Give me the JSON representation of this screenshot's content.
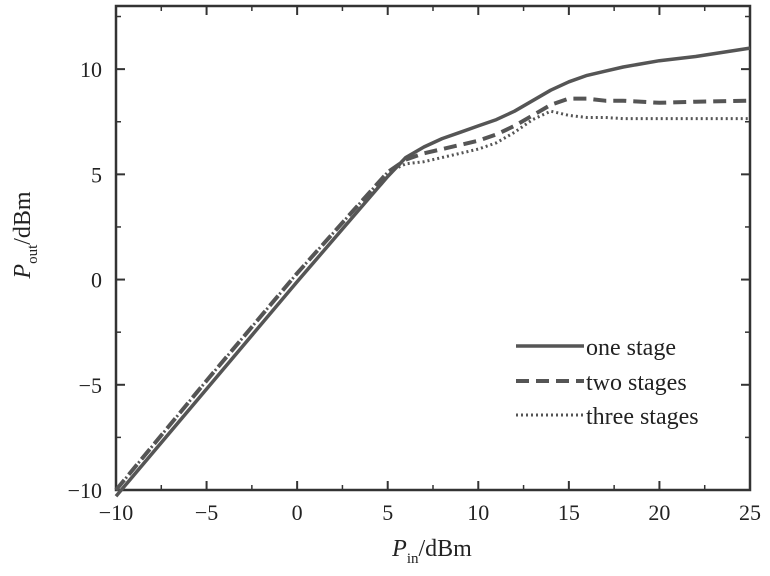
{
  "chart_data": {
    "type": "line",
    "title": "",
    "xlabel": {
      "main": "P",
      "sub": "in",
      "unit": "/dBm"
    },
    "ylabel": {
      "main": "P",
      "sub": "out",
      "unit": "/dBm"
    },
    "xlim": [
      -10,
      25
    ],
    "ylim": [
      -10,
      13
    ],
    "xticks": [
      -10,
      -5,
      0,
      5,
      10,
      15,
      20,
      25
    ],
    "xtick_labels": [
      "−10",
      "−5",
      "0",
      "5",
      "10",
      "15",
      "20",
      "25"
    ],
    "yticks": [
      -10,
      -5,
      0,
      5,
      10
    ],
    "ytick_labels": [
      "−10",
      "−5",
      "0",
      "5",
      "10"
    ],
    "grid": false,
    "legend_position": "lower-right",
    "series": [
      {
        "name": "one stage",
        "style": "solid",
        "color": "#555555",
        "x": [
          -10,
          -5,
          0,
          5,
          6,
          7,
          8,
          9,
          10,
          11,
          12,
          13,
          14,
          15,
          16,
          17,
          18,
          20,
          22,
          25
        ],
        "y": [
          -10.3,
          -5.2,
          -0.1,
          4.9,
          5.8,
          6.3,
          6.7,
          7.0,
          7.3,
          7.6,
          8.0,
          8.5,
          9.0,
          9.4,
          9.7,
          9.9,
          10.1,
          10.4,
          10.6,
          11.0
        ]
      },
      {
        "name": "two stages",
        "style": "dashed",
        "color": "#555555",
        "x": [
          -10,
          -5,
          0,
          5,
          6,
          7,
          8,
          9,
          10,
          11,
          12,
          13,
          14,
          15,
          16,
          17,
          18,
          20,
          22,
          25
        ],
        "y": [
          -10.0,
          -4.8,
          0.3,
          5.1,
          5.7,
          6.0,
          6.2,
          6.4,
          6.6,
          6.9,
          7.3,
          7.8,
          8.3,
          8.6,
          8.6,
          8.5,
          8.5,
          8.4,
          8.45,
          8.5
        ]
      },
      {
        "name": "three stages",
        "style": "dotted",
        "color": "#555555",
        "x": [
          -10,
          -5,
          0,
          5,
          6,
          7,
          8,
          9,
          10,
          11,
          12,
          13,
          14,
          15,
          16,
          17,
          18,
          20,
          22,
          25
        ],
        "y": [
          -10.0,
          -4.8,
          0.3,
          5.1,
          5.5,
          5.6,
          5.8,
          6.0,
          6.2,
          6.5,
          7.0,
          7.6,
          8.0,
          7.8,
          7.7,
          7.7,
          7.65,
          7.65,
          7.65,
          7.65
        ]
      }
    ]
  }
}
